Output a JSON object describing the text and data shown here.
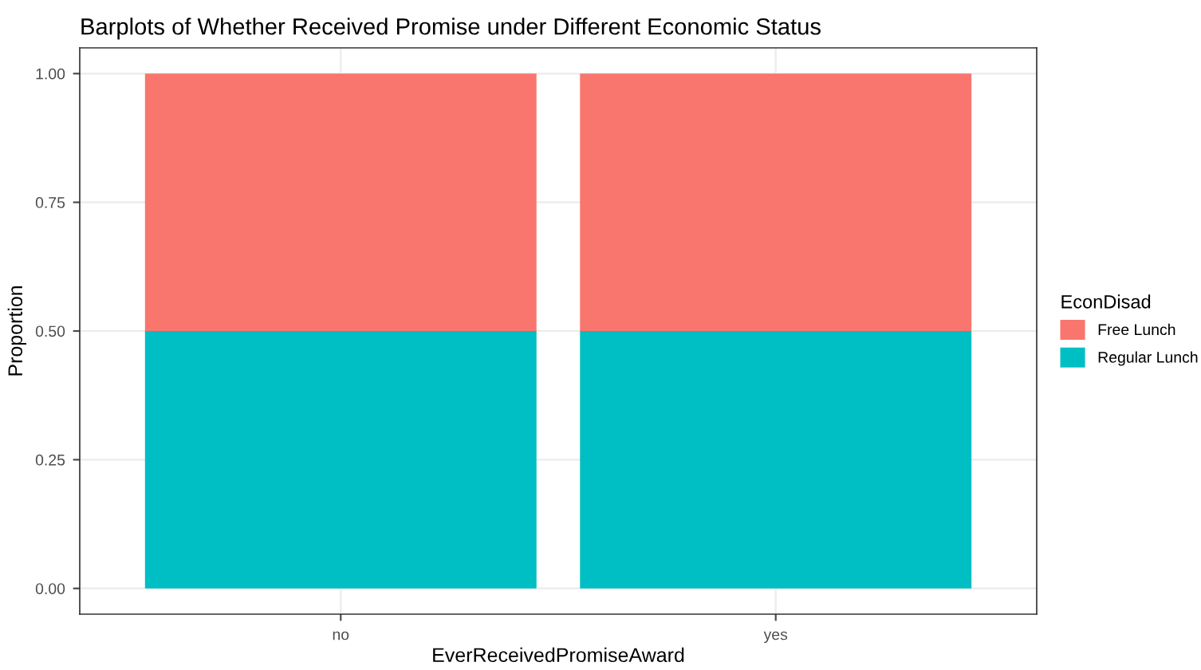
{
  "chart_data": {
    "type": "bar",
    "title": "Barplots of Whether Received Promise under Different Economic Status",
    "xlabel": "EverReceivedPromiseAward",
    "ylabel": "Proportion",
    "legend_title": "EconDisad",
    "categories": [
      "no",
      "yes"
    ],
    "stacked": true,
    "series": [
      {
        "name": "Regular Lunch",
        "color": "#00bfc4",
        "values": [
          0.5,
          0.5
        ]
      },
      {
        "name": "Free Lunch",
        "color": "#f8766d",
        "values": [
          0.5,
          0.5
        ]
      }
    ],
    "ylim": [
      -0.05,
      1.05
    ],
    "yticks": [
      {
        "value": 0,
        "label": "0.00"
      },
      {
        "value": 0.25,
        "label": "0.25"
      },
      {
        "value": 0.5,
        "label": "0.50"
      },
      {
        "value": 0.75,
        "label": "0.75"
      },
      {
        "value": 1,
        "label": "1.00"
      }
    ],
    "grid": true,
    "legend": "right"
  }
}
